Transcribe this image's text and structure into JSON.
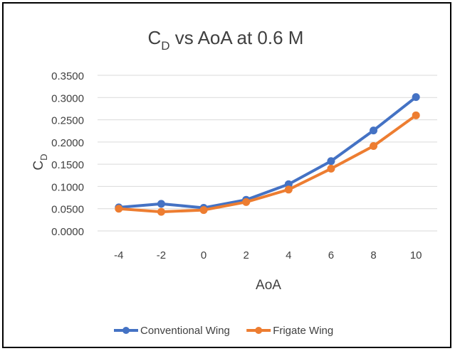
{
  "chart_data": {
    "type": "line",
    "title": {
      "main": "C",
      "sub": "D",
      "rest": " vs AoA at 0.6 M"
    },
    "ylabel": {
      "main": "C",
      "sub": "D"
    },
    "xlabel": "AoA",
    "categories": [
      "-4",
      "-2",
      "0",
      "2",
      "4",
      "6",
      "8",
      "10"
    ],
    "x": [
      -4,
      -2,
      0,
      2,
      4,
      6,
      8,
      10
    ],
    "yticks": [
      "0.0000",
      "0.0500",
      "0.1000",
      "0.1500",
      "0.2000",
      "0.2500",
      "0.3000",
      "0.3500"
    ],
    "ylim": [
      0,
      0.35
    ],
    "grid": true,
    "legend_position": "bottom",
    "series": [
      {
        "name": "Conventional Wing",
        "color": "#4472C4",
        "values": [
          0.053,
          0.061,
          0.052,
          0.07,
          0.105,
          0.157,
          0.226,
          0.301
        ]
      },
      {
        "name": "Frigate Wing",
        "color": "#ED7D31",
        "values": [
          0.05,
          0.043,
          0.047,
          0.065,
          0.093,
          0.14,
          0.191,
          0.26
        ]
      }
    ]
  }
}
